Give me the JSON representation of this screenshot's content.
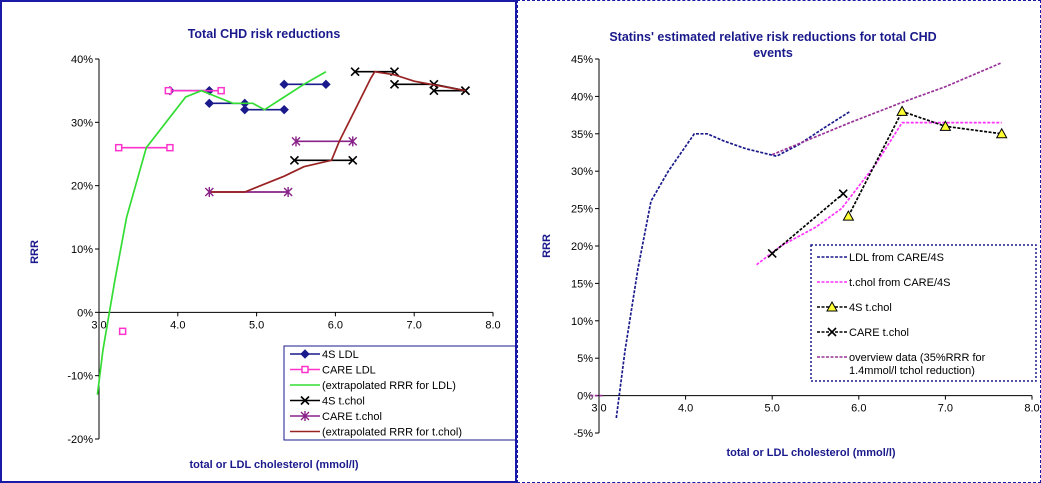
{
  "chart_data": [
    {
      "type": "line",
      "title": "Total CHD risk reductions",
      "xlabel": "total or LDL cholesterol (mmol/l)",
      "ylabel": "RRR",
      "xlim": [
        3.0,
        8.0
      ],
      "ylim": [
        -20,
        40
      ],
      "x_ticks": [
        "3.0",
        "4.0",
        "5.0",
        "6.0",
        "7.0",
        "8.0"
      ],
      "y_ticks": [
        "-20%",
        "-10%",
        "0%",
        "10%",
        "20%",
        "30%",
        "40%"
      ],
      "y_tick_values": [
        -20,
        -10,
        0,
        10,
        20,
        30,
        40
      ],
      "x_tick_values": [
        3,
        4,
        5,
        6,
        7,
        8
      ],
      "grid": false,
      "legend_position": "bottom-right",
      "series": [
        {
          "name": "4S LDL",
          "color": "#1a1a8c",
          "marker": "diamond",
          "segments": [
            [
              [
                3.9,
                35
              ],
              [
                4.4,
                35
              ]
            ],
            [
              [
                4.4,
                33
              ],
              [
                4.85,
                33
              ]
            ],
            [
              [
                4.85,
                32
              ],
              [
                5.35,
                32
              ]
            ],
            [
              [
                5.35,
                36
              ],
              [
                5.88,
                36
              ]
            ]
          ]
        },
        {
          "name": "CARE LDL",
          "color": "#ff33cc",
          "marker": "square",
          "segments": [
            [
              [
                3.3,
                -3
              ]
            ],
            [
              [
                3.25,
                26
              ],
              [
                3.9,
                26
              ]
            ],
            [
              [
                3.88,
                35
              ],
              [
                4.55,
                35
              ]
            ]
          ]
        },
        {
          "name": "(extrapolated RRR for LDL)",
          "color": "#33dd33",
          "marker": "none",
          "segments": [
            [
              [
                2.98,
                -13
              ],
              [
                3.05,
                -6
              ],
              [
                3.2,
                5
              ],
              [
                3.35,
                15
              ],
              [
                3.6,
                26
              ],
              [
                3.85,
                30
              ],
              [
                4.1,
                34
              ],
              [
                4.3,
                35
              ],
              [
                4.5,
                34
              ],
              [
                4.7,
                33
              ],
              [
                4.95,
                33
              ],
              [
                5.1,
                32
              ],
              [
                5.35,
                34
              ],
              [
                5.6,
                36
              ],
              [
                5.88,
                38
              ]
            ]
          ]
        },
        {
          "name": "4S t.chol",
          "color": "#000000",
          "marker": "x",
          "segments": [
            [
              [
                6.25,
                38
              ],
              [
                6.75,
                38
              ]
            ],
            [
              [
                6.75,
                36
              ],
              [
                7.25,
                36
              ],
              [
                7.65,
                35
              ]
            ],
            [
              [
                7.25,
                35
              ],
              [
                7.65,
                35
              ]
            ],
            [
              [
                5.48,
                24
              ],
              [
                6.22,
                24
              ]
            ]
          ]
        },
        {
          "name": "CARE t.chol",
          "color": "#882288",
          "marker": "asterisk",
          "segments": [
            [
              [
                4.4,
                19
              ],
              [
                5.4,
                19
              ]
            ],
            [
              [
                5.5,
                27
              ],
              [
                6.22,
                27
              ]
            ]
          ]
        },
        {
          "name": "(extrapolated RRR for t.chol)",
          "color": "#992222",
          "marker": "none",
          "segments": [
            [
              [
                4.42,
                19
              ],
              [
                4.85,
                19
              ],
              [
                5.05,
                20
              ],
              [
                5.35,
                21.5
              ],
              [
                5.6,
                23
              ],
              [
                5.95,
                24
              ],
              [
                6.05,
                27
              ],
              [
                6.25,
                32
              ],
              [
                6.45,
                37
              ],
              [
                6.5,
                38
              ],
              [
                6.75,
                37.5
              ],
              [
                7.0,
                36.5
              ],
              [
                7.3,
                35.8
              ],
              [
                7.65,
                35
              ]
            ]
          ]
        }
      ]
    },
    {
      "type": "line",
      "title": "Statins' estimated relative risk reductions for total CHD events",
      "title_lines": [
        "Statins' estimated relative risk reductions for total CHD",
        "events"
      ],
      "xlabel": "total or LDL cholesterol (mmol/l)",
      "ylabel": "RRR",
      "xlim": [
        3.0,
        8.0
      ],
      "ylim": [
        -5,
        45
      ],
      "x_ticks": [
        "3.0",
        "4.0",
        "5.0",
        "6.0",
        "7.0",
        "8.0"
      ],
      "y_ticks": [
        "-5%",
        "0%",
        "5%",
        "10%",
        "15%",
        "20%",
        "25%",
        "30%",
        "35%",
        "40%",
        "45%"
      ],
      "y_tick_values": [
        -5,
        0,
        5,
        10,
        15,
        20,
        25,
        30,
        35,
        40,
        45
      ],
      "x_tick_values": [
        3,
        4,
        5,
        6,
        7,
        8
      ],
      "grid": false,
      "legend_position": "right",
      "series": [
        {
          "name": "LDL from CARE/4S",
          "color": "#1a1a8c",
          "dash": "3,1.5",
          "marker": "none",
          "segments": [
            [
              [
                3.2,
                -3
              ],
              [
                3.3,
                6
              ],
              [
                3.45,
                17
              ],
              [
                3.6,
                26
              ],
              [
                3.8,
                30
              ],
              [
                4.1,
                35
              ],
              [
                4.25,
                35
              ],
              [
                4.45,
                34
              ],
              [
                4.7,
                33
              ],
              [
                5.05,
                32
              ],
              [
                5.3,
                33.5
              ],
              [
                5.6,
                35.8
              ],
              [
                5.9,
                38
              ]
            ]
          ]
        },
        {
          "name": "t.chol from CARE/4S",
          "color": "#ff33ff",
          "dash": "3,1.5",
          "marker": "none",
          "segments": [
            [
              [
                4.82,
                17.5
              ],
              [
                5.1,
                20
              ],
              [
                5.5,
                22.5
              ],
              [
                5.8,
                25
              ],
              [
                6.2,
                31
              ],
              [
                6.5,
                36.5
              ],
              [
                7.65,
                36.5
              ]
            ]
          ]
        },
        {
          "name": "4S t.chol",
          "color": "#000000",
          "dash": "3,1.5",
          "marker": "triangle",
          "segments": [
            [
              [
                5.88,
                24
              ],
              [
                6.5,
                38
              ],
              [
                7.0,
                36
              ],
              [
                7.65,
                35
              ]
            ]
          ]
        },
        {
          "name": "CARE t.chol",
          "color": "#000000",
          "dash": "3,1.5",
          "marker": "x",
          "segments": [
            [
              [
                5.0,
                19
              ],
              [
                5.82,
                27
              ]
            ]
          ]
        },
        {
          "name": "overview data (35%RRR for 1.4mmol/l tchol reduction)",
          "legend_lines": [
            "overview data (35%RRR for",
            "1.4mmol/l tchol reduction)"
          ],
          "color": "#993399",
          "dash": "3,1.5",
          "marker": "none",
          "segments": [
            [
              [
                2.9,
                0
              ],
              [
                3.05,
                0
              ]
            ],
            [
              [
                5.0,
                32.2
              ],
              [
                5.9,
                36.5
              ],
              [
                6.5,
                39.2
              ],
              [
                7.0,
                41.3
              ],
              [
                7.65,
                44.5
              ]
            ]
          ]
        }
      ]
    }
  ]
}
